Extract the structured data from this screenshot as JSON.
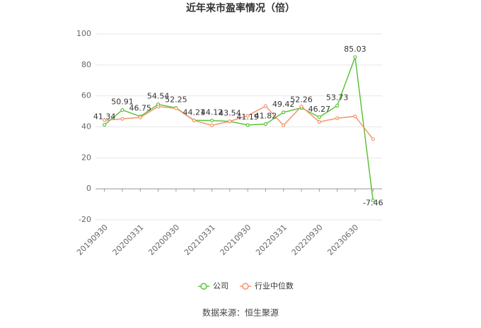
{
  "chart_data": {
    "type": "line",
    "title": "近年来市盈率情况（倍）",
    "categories": [
      "20190930",
      null,
      "20200331",
      null,
      "20200930",
      null,
      "20210331",
      null,
      "20210930",
      null,
      "20220331",
      null,
      "20220930",
      null,
      "20230630",
      null
    ],
    "series": [
      {
        "name": "公司",
        "color": "#5cc43a",
        "values": [
          41.34,
          50.91,
          46.75,
          54.54,
          52.25,
          44.21,
          44.12,
          43.54,
          41.19,
          41.82,
          49.42,
          52.26,
          46.27,
          53.73,
          85.03,
          -7.46
        ]
      },
      {
        "name": "行业中位数",
        "color": "#f5956b",
        "values": [
          44.3,
          45.2,
          46.1,
          53.1,
          52.0,
          44.2,
          41.0,
          43.6,
          47.2,
          53.4,
          41.0,
          53.2,
          43.2,
          45.6,
          46.8,
          32.1
        ]
      }
    ],
    "ylim": [
      -20,
      100
    ],
    "yticks": [
      -20,
      0,
      20,
      40,
      60,
      80,
      100
    ],
    "grid": true,
    "legend": "bottom",
    "source": "数据来源：恒生聚源"
  }
}
